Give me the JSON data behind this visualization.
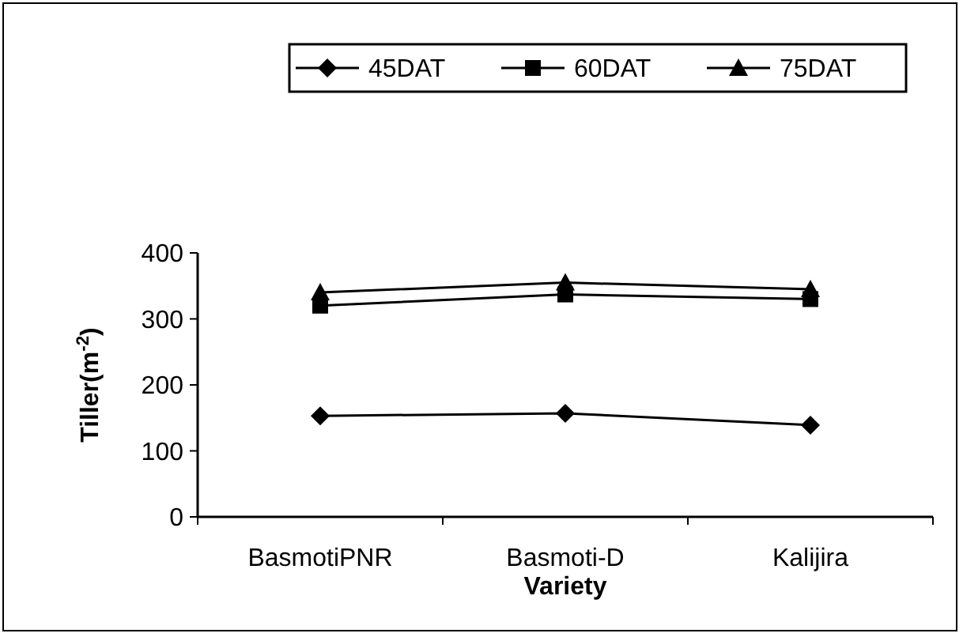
{
  "chart_data": {
    "type": "line",
    "xlabel": "Variety",
    "ylabel": "Tiller(m$^{-2}$)",
    "categories": [
      "BasmotiPNR",
      "Basmoti-D",
      "Kalijira"
    ],
    "series": [
      {
        "name": "45DAT",
        "color": "#000000",
        "marker": "diamond",
        "values": [
          153,
          157,
          139
        ]
      },
      {
        "name": "60DAT",
        "color": "#000000",
        "marker": "square",
        "values": [
          320,
          337,
          330
        ]
      },
      {
        "name": "75DAT",
        "color": "#000000",
        "marker": "triangle",
        "values": [
          340,
          355,
          345
        ]
      }
    ],
    "ylim": [
      0,
      400
    ],
    "yticks": [
      0,
      100,
      200,
      300,
      400
    ],
    "grid": false,
    "legend": "top",
    "line_style": "solid"
  }
}
